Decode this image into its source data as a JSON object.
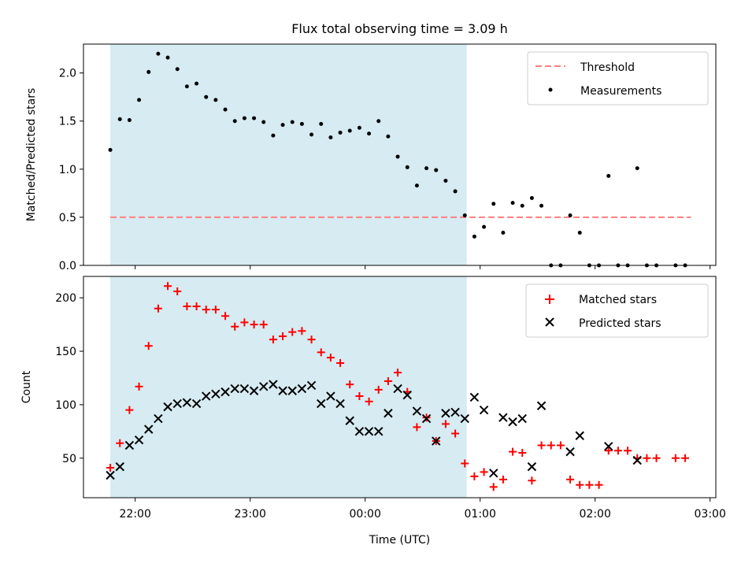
{
  "chart_data": [
    {
      "type": "scatter",
      "title": "Flux total observing time = 3.09 h",
      "xlabel": "",
      "ylabel": "Matched/Predicted stars",
      "ylim": [
        0,
        2.3
      ],
      "yticks": [
        "0.0",
        "0.5",
        "1.0",
        "1.5",
        "2.0"
      ],
      "shaded_span": {
        "start": "21:47",
        "end": "00:53",
        "color": "#add8e6"
      },
      "threshold": {
        "name": "Threshold",
        "value": 0.5,
        "start": "21:47",
        "end": "02:50",
        "color": "#ff7f7f"
      },
      "legend": [
        "Threshold",
        "Measurements"
      ],
      "legend_position": "upper right",
      "series": [
        {
          "name": "Measurements",
          "marker": "dot",
          "color": "#000000",
          "x": [
            "21:47",
            "21:52",
            "21:57",
            "22:02",
            "22:07",
            "22:12",
            "22:17",
            "22:22",
            "22:27",
            "22:32",
            "22:37",
            "22:42",
            "22:47",
            "22:52",
            "22:57",
            "23:02",
            "23:07",
            "23:12",
            "23:17",
            "23:22",
            "23:27",
            "23:32",
            "23:37",
            "23:42",
            "23:47",
            "23:52",
            "23:57",
            "00:02",
            "00:07",
            "00:12",
            "00:17",
            "00:22",
            "00:27",
            "00:32",
            "00:37",
            "00:42",
            "00:47",
            "00:52",
            "00:57",
            "01:02",
            "01:07",
            "01:12",
            "01:17",
            "01:22",
            "01:27",
            "01:32",
            "01:37",
            "01:42",
            "01:47",
            "01:52",
            "01:57",
            "02:02",
            "02:07",
            "02:12",
            "02:17",
            "02:22",
            "02:27",
            "02:32",
            "02:42",
            "02:47"
          ],
          "y": [
            1.2,
            1.52,
            1.51,
            1.72,
            2.01,
            2.2,
            2.16,
            2.04,
            1.86,
            1.89,
            1.75,
            1.72,
            1.62,
            1.5,
            1.53,
            1.53,
            1.49,
            1.35,
            1.46,
            1.49,
            1.47,
            1.36,
            1.47,
            1.33,
            1.38,
            1.4,
            1.43,
            1.37,
            1.5,
            1.34,
            1.13,
            1.02,
            0.83,
            1.01,
            0.99,
            0.88,
            0.77,
            0.52,
            0.3,
            0.4,
            0.64,
            0.34,
            0.65,
            0.62,
            0.7,
            0.62,
            0.0,
            0.0,
            0.52,
            0.34,
            0.0,
            0.0,
            0.93,
            0.0,
            0.0,
            1.01,
            0.0,
            0.0,
            0.0,
            0.0
          ]
        }
      ]
    },
    {
      "type": "scatter",
      "title": "",
      "xlabel": "Time (UTC)",
      "ylabel": "Count",
      "ylim": [
        13,
        220
      ],
      "yticks": [
        "50",
        "100",
        "150",
        "200"
      ],
      "xticks": [
        "22:00",
        "23:00",
        "00:00",
        "01:00",
        "02:00",
        "03:00"
      ],
      "xlim": [
        "21:33",
        "03:03"
      ],
      "shaded_span": {
        "start": "21:47",
        "end": "00:53",
        "color": "#add8e6"
      },
      "legend": [
        "Matched stars",
        "Predicted stars"
      ],
      "legend_position": "upper right",
      "series": [
        {
          "name": "Matched stars",
          "marker": "plus",
          "color": "#ff0000",
          "x": [
            "21:47",
            "21:52",
            "21:57",
            "22:02",
            "22:07",
            "22:12",
            "22:17",
            "22:22",
            "22:27",
            "22:32",
            "22:37",
            "22:42",
            "22:47",
            "22:52",
            "22:57",
            "23:02",
            "23:07",
            "23:12",
            "23:17",
            "23:22",
            "23:27",
            "23:32",
            "23:37",
            "23:42",
            "23:47",
            "23:52",
            "23:57",
            "00:02",
            "00:07",
            "00:12",
            "00:17",
            "00:22",
            "00:27",
            "00:32",
            "00:37",
            "00:42",
            "00:47",
            "00:52",
            "00:57",
            "01:02",
            "01:07",
            "01:12",
            "01:17",
            "01:22",
            "01:27",
            "01:32",
            "01:37",
            "01:42",
            "01:47",
            "01:52",
            "01:57",
            "02:02",
            "02:07",
            "02:12",
            "02:17",
            "02:22",
            "02:27",
            "02:32",
            "02:42",
            "02:47"
          ],
          "y": [
            41,
            64,
            95,
            117,
            155,
            190,
            211,
            206,
            192,
            192,
            189,
            189,
            183,
            173,
            177,
            175,
            175,
            161,
            164,
            168,
            169,
            161,
            149,
            144,
            139,
            119,
            108,
            103,
            114,
            122,
            130,
            112,
            79,
            88,
            66,
            82,
            73,
            45,
            33,
            37,
            23,
            30,
            56,
            55,
            29,
            62,
            62,
            62,
            30,
            25,
            25,
            25,
            57,
            57,
            57,
            50,
            50,
            50,
            50,
            50
          ]
        },
        {
          "name": "Predicted stars",
          "marker": "x",
          "color": "#000000",
          "x": [
            "21:47",
            "21:52",
            "21:57",
            "22:02",
            "22:07",
            "22:12",
            "22:17",
            "22:22",
            "22:27",
            "22:32",
            "22:37",
            "22:42",
            "22:47",
            "22:52",
            "22:57",
            "23:02",
            "23:07",
            "23:12",
            "23:17",
            "23:22",
            "23:27",
            "23:32",
            "23:37",
            "23:42",
            "23:47",
            "23:52",
            "23:57",
            "00:02",
            "00:07",
            "00:12",
            "00:17",
            "00:22",
            "00:27",
            "00:32",
            "00:37",
            "00:42",
            "00:47",
            "00:52",
            "00:57",
            "01:02",
            "01:07",
            "01:12",
            "01:17",
            "01:22",
            "01:27",
            "01:32",
            "01:37",
            "01:42",
            "01:47",
            "01:52",
            "01:57",
            "02:02",
            "02:07",
            "02:12",
            "02:17",
            "02:22",
            "02:27",
            "02:32",
            "02:42",
            "02:47"
          ],
          "y": [
            34,
            42,
            62,
            67,
            77,
            87,
            98,
            101,
            102,
            101,
            108,
            110,
            112,
            115,
            115,
            113,
            117,
            119,
            113,
            113,
            115,
            118,
            101,
            108,
            101,
            85,
            75,
            75,
            75,
            92,
            115,
            109,
            94,
            87,
            66,
            92,
            93,
            87,
            107,
            95,
            36,
            88,
            84,
            87,
            42,
            99,
            null,
            null,
            56,
            71,
            null,
            null,
            61,
            null,
            null,
            48,
            null,
            null,
            null,
            null
          ]
        }
      ]
    }
  ]
}
